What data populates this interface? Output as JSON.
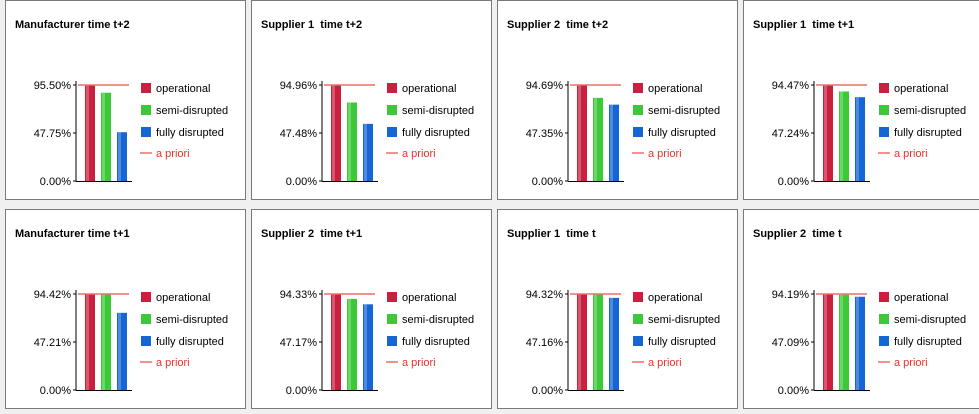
{
  "colors": {
    "operational": "#c8203f",
    "semi_disrupted": "#3cc838",
    "fully_disrupted": "#1565d2",
    "a_priori": "#ee6f6a"
  },
  "legend": [
    "operational",
    "semi-disrupted",
    "fully disrupted",
    "a priori"
  ],
  "chart_data": [
    {
      "type": "bar",
      "title": "Manufacturer time t+2",
      "categories": [
        "operational",
        "semi-disrupted",
        "fully disrupted"
      ],
      "values": [
        95.5,
        87.8,
        48.5
      ],
      "a_priori": 95.5,
      "ylim": [
        0,
        95.5
      ],
      "yticks": [
        "95.50%",
        "47.75%",
        "0.00%"
      ],
      "grid": false,
      "legend_position": "right"
    },
    {
      "type": "bar",
      "title": "Supplier 1  time t+2",
      "categories": [
        "operational",
        "semi-disrupted",
        "fully disrupted"
      ],
      "values": [
        94.96,
        77.7,
        56.5
      ],
      "a_priori": 94.96,
      "ylim": [
        0,
        94.96
      ],
      "yticks": [
        "94.96%",
        "47.48%",
        "0.00%"
      ],
      "grid": false,
      "legend_position": "right"
    },
    {
      "type": "bar",
      "title": "Supplier 2  time t+2",
      "categories": [
        "operational",
        "semi-disrupted",
        "fully disrupted"
      ],
      "values": [
        94.69,
        82.0,
        75.3
      ],
      "a_priori": 94.69,
      "ylim": [
        0,
        94.69
      ],
      "yticks": [
        "94.69%",
        "47.35%",
        "0.00%"
      ],
      "grid": false,
      "legend_position": "right"
    },
    {
      "type": "bar",
      "title": "Supplier 1  time t+1",
      "categories": [
        "operational",
        "semi-disrupted",
        "fully disrupted"
      ],
      "values": [
        94.47,
        88.1,
        82.5
      ],
      "a_priori": 94.47,
      "ylim": [
        0,
        94.47
      ],
      "yticks": [
        "94.47%",
        "47.24%",
        "0.00%"
      ],
      "grid": false,
      "legend_position": "right"
    },
    {
      "type": "bar",
      "title": "Manufacturer time t+1",
      "categories": [
        "operational",
        "semi-disrupted",
        "fully disrupted"
      ],
      "values": [
        94.42,
        94.0,
        75.9
      ],
      "a_priori": 94.42,
      "ylim": [
        0,
        94.42
      ],
      "yticks": [
        "94.42%",
        "47.21%",
        "0.00%"
      ],
      "grid": false,
      "legend_position": "right"
    },
    {
      "type": "bar",
      "title": "Supplier 2  time t+1",
      "categories": [
        "operational",
        "semi-disrupted",
        "fully disrupted"
      ],
      "values": [
        94.33,
        89.5,
        84.2
      ],
      "a_priori": 94.33,
      "ylim": [
        0,
        94.33
      ],
      "yticks": [
        "94.33%",
        "47.17%",
        "0.00%"
      ],
      "grid": false,
      "legend_position": "right"
    },
    {
      "type": "bar",
      "title": "Supplier 1  time t",
      "categories": [
        "operational",
        "semi-disrupted",
        "fully disrupted"
      ],
      "values": [
        94.32,
        93.8,
        90.5
      ],
      "a_priori": 94.32,
      "ylim": [
        0,
        94.32
      ],
      "yticks": [
        "94.32%",
        "47.16%",
        "0.00%"
      ],
      "grid": false,
      "legend_position": "right"
    },
    {
      "type": "bar",
      "title": "Supplier 2  time t",
      "categories": [
        "operational",
        "semi-disrupted",
        "fully disrupted"
      ],
      "values": [
        94.19,
        93.5,
        91.5
      ],
      "a_priori": 94.19,
      "ylim": [
        0,
        94.19
      ],
      "yticks": [
        "94.19%",
        "47.09%",
        "0.00%"
      ],
      "grid": false,
      "legend_position": "right"
    }
  ]
}
